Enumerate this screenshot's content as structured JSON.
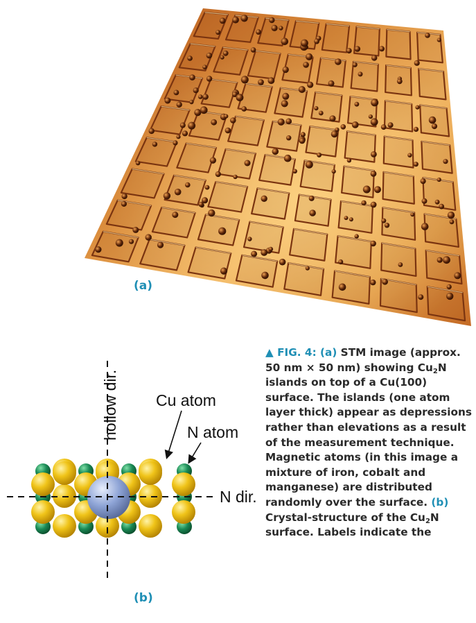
{
  "figure": {
    "panel_a_label": "(a)",
    "panel_b_label": "(b)",
    "diagram": {
      "axis_vertical_label": "hollow dir.",
      "axis_horizontal_label": "N dir.",
      "cu_label": "Cu atom",
      "n_label": "N atom",
      "colors": {
        "cu": "#f0c419",
        "n": "#1a8a55",
        "magnetic_atom": "#7e96c9",
        "surface": "#c8702a"
      }
    },
    "caption": {
      "marker": "▲",
      "fig_label": "FIG. 4:",
      "part_a": "(a)",
      "text_a1": "STM image (approx. 50 nm × 50 nm) showing Cu",
      "sub_2": "2",
      "text_a2": "N islands on top of a Cu(100) surface. The islands (one atom layer thick) appear as depressions rather than elevations as a result of the measurement technique. Magnetic atoms (in this image a mixture of iron, cobalt and manganese) are distributed randomly over the surface.",
      "part_b": "(b)",
      "text_b1": "Crystal-structure of the Cu",
      "text_b2": "N surface. Labels indicate the"
    }
  }
}
